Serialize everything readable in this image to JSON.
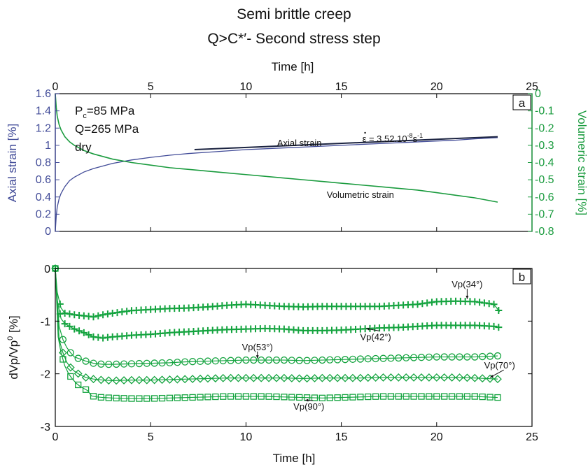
{
  "figure": {
    "title_line1": "Semi brittle creep",
    "title_line2": "Q>C*′- Second stress step"
  },
  "colors": {
    "axial": "#404a97",
    "volumetric": "#1a9b3e",
    "fit": "#1b2340",
    "markers": "#13a33e"
  },
  "chart_data": [
    {
      "type": "line",
      "panel_label": "a",
      "top_xlabel": "Time [h]",
      "xlim": [
        0,
        25
      ],
      "xticks": [
        0,
        5,
        10,
        15,
        20,
        25
      ],
      "y_left": {
        "label": "Axial strain [%]",
        "lim": [
          0,
          1.6
        ],
        "ticks": [
          0,
          0.2,
          0.4,
          0.6,
          0.8,
          1,
          1.2,
          1.4,
          1.6
        ]
      },
      "y_right": {
        "label": "Volumeric strain [%]",
        "lim": [
          -0.8,
          0
        ],
        "ticks": [
          -0.8,
          -0.7,
          -0.6,
          -0.5,
          -0.4,
          -0.3,
          -0.2,
          -0.1,
          0
        ]
      },
      "conditions": {
        "pc_main": "P",
        "pc_sub": "c",
        "pc_value": "=85 MPa",
        "q": "Q=265 MPa",
        "state": "dry"
      },
      "series": [
        {
          "name": "Axial strain",
          "axis": "left",
          "x": [
            0,
            0.05,
            0.1,
            0.2,
            0.3,
            0.5,
            0.75,
            1,
            1.5,
            2,
            3,
            4,
            5,
            6,
            7,
            8,
            9,
            10,
            11,
            12,
            13,
            14,
            15,
            16,
            17,
            18,
            19,
            20,
            21,
            22,
            23.2
          ],
          "y": [
            0.0,
            0.18,
            0.28,
            0.38,
            0.44,
            0.52,
            0.59,
            0.63,
            0.69,
            0.73,
            0.79,
            0.83,
            0.86,
            0.885,
            0.905,
            0.92,
            0.935,
            0.95,
            0.96,
            0.97,
            0.98,
            0.99,
            1.0,
            1.01,
            1.02,
            1.03,
            1.04,
            1.05,
            1.06,
            1.075,
            1.09
          ]
        },
        {
          "name": "Volumetric strain",
          "axis": "right",
          "x": [
            0,
            0.05,
            0.1,
            0.2,
            0.3,
            0.5,
            0.75,
            1,
            1.5,
            2,
            3,
            4,
            5,
            6,
            7,
            8,
            9,
            10,
            11,
            12,
            13,
            14,
            15,
            16,
            17,
            18,
            19,
            20,
            21,
            22,
            23.2
          ],
          "y": [
            0.0,
            -0.08,
            -0.13,
            -0.18,
            -0.21,
            -0.25,
            -0.28,
            -0.3,
            -0.33,
            -0.35,
            -0.38,
            -0.4,
            -0.415,
            -0.43,
            -0.44,
            -0.45,
            -0.46,
            -0.47,
            -0.48,
            -0.49,
            -0.5,
            -0.51,
            -0.52,
            -0.53,
            -0.54,
            -0.55,
            -0.56,
            -0.575,
            -0.59,
            -0.605,
            -0.63
          ]
        }
      ],
      "fit_line": {
        "x": [
          7.3,
          23.2
        ],
        "y": [
          0.95,
          1.1
        ]
      },
      "annotations": {
        "axial_label": {
          "text": "Axial strain",
          "x": 12.8,
          "y": 0.99
        },
        "volumetric_label": {
          "text": "Volumetric strain",
          "x": 16,
          "y": 0.39
        },
        "rate": {
          "symbol": "ε",
          "eq": " = 3.52.10",
          "exp1": "-8",
          "unit": "s",
          "exp2": "-1",
          "x": 16.1,
          "y": 1.04
        }
      }
    },
    {
      "type": "scatter",
      "panel_label": "b",
      "xlabel": "Time [h]",
      "ylabel_main": "dVp/Vp",
      "ylabel_sup": "0",
      "ylabel_unit": " [%]",
      "xlim": [
        0,
        25
      ],
      "ylim": [
        -3,
        0
      ],
      "xticks": [
        0,
        5,
        10,
        15,
        20,
        25
      ],
      "yticks": [
        0,
        -1,
        -2,
        -3
      ],
      "series": [
        {
          "name": "Vp(34°)",
          "marker": "plus",
          "step": 0.25,
          "x": [
            0,
            0.1,
            0.3,
            0.5,
            1,
            1.5,
            2,
            2.5,
            3,
            4,
            5,
            6,
            7,
            8,
            9,
            10,
            11,
            12,
            13,
            14,
            15,
            16,
            17,
            18,
            19,
            20,
            21,
            22,
            23,
            23.3
          ],
          "y": [
            0,
            -0.45,
            -0.75,
            -0.85,
            -0.88,
            -0.9,
            -0.92,
            -0.88,
            -0.85,
            -0.8,
            -0.78,
            -0.76,
            -0.75,
            -0.73,
            -0.7,
            -0.68,
            -0.7,
            -0.72,
            -0.73,
            -0.72,
            -0.72,
            -0.72,
            -0.72,
            -0.7,
            -0.68,
            -0.63,
            -0.62,
            -0.63,
            -0.68,
            -0.82
          ]
        },
        {
          "name": "Vp(42°)",
          "marker": "plus",
          "step": 0.25,
          "x": [
            0,
            0.1,
            0.3,
            0.5,
            1,
            1.5,
            2,
            2.5,
            3,
            4,
            5,
            6,
            7,
            8,
            9,
            10,
            11,
            12,
            13,
            14,
            15,
            16,
            17,
            18,
            19,
            20,
            21,
            22,
            23,
            23.3
          ],
          "y": [
            0,
            -0.6,
            -0.95,
            -1.05,
            -1.15,
            -1.22,
            -1.3,
            -1.32,
            -1.3,
            -1.27,
            -1.25,
            -1.22,
            -1.2,
            -1.18,
            -1.16,
            -1.15,
            -1.14,
            -1.15,
            -1.18,
            -1.18,
            -1.17,
            -1.15,
            -1.13,
            -1.12,
            -1.1,
            -1.08,
            -1.08,
            -1.08,
            -1.1,
            -1.12
          ]
        },
        {
          "name": "Vp(53°)",
          "marker": "circle",
          "step": 0.4,
          "x": [
            0,
            0.2,
            0.4,
            0.6,
            0.8,
            1,
            1.3,
            1.6,
            2,
            2.5,
            3,
            4,
            5,
            6,
            7,
            8,
            9,
            10,
            11,
            12,
            13,
            14,
            15,
            16,
            17,
            18,
            19,
            20,
            21,
            22,
            23.2
          ],
          "y": [
            0,
            -1.1,
            -1.35,
            -1.5,
            -1.6,
            -1.68,
            -1.72,
            -1.76,
            -1.8,
            -1.82,
            -1.82,
            -1.81,
            -1.8,
            -1.79,
            -1.77,
            -1.76,
            -1.75,
            -1.74,
            -1.74,
            -1.74,
            -1.75,
            -1.74,
            -1.73,
            -1.72,
            -1.71,
            -1.7,
            -1.69,
            -1.68,
            -1.68,
            -1.68,
            -1.66
          ]
        },
        {
          "name": "Vp(70°)",
          "marker": "diamond",
          "step": 0.4,
          "x": [
            0,
            0.2,
            0.4,
            0.6,
            0.8,
            1,
            1.3,
            1.6,
            2,
            2.5,
            3,
            4,
            5,
            6,
            7,
            8,
            9,
            10,
            11,
            12,
            13,
            14,
            15,
            16,
            17,
            18,
            19,
            20,
            21,
            22,
            23.2
          ],
          "y": [
            0,
            -1.35,
            -1.6,
            -1.78,
            -1.88,
            -1.95,
            -2.02,
            -2.07,
            -2.1,
            -2.12,
            -2.13,
            -2.12,
            -2.12,
            -2.11,
            -2.1,
            -2.09,
            -2.08,
            -2.08,
            -2.08,
            -2.08,
            -2.09,
            -2.08,
            -2.08,
            -2.08,
            -2.07,
            -2.07,
            -2.07,
            -2.07,
            -2.07,
            -2.08,
            -2.1
          ]
        },
        {
          "name": "Vp(90°)",
          "marker": "square",
          "step": 0.4,
          "x": [
            0,
            0.15,
            0.3,
            0.5,
            0.7,
            0.9,
            1.1,
            1.3,
            1.5,
            1.7,
            1.9,
            2.2,
            2.5,
            3,
            4,
            5,
            6,
            7,
            8,
            9,
            10,
            11,
            12,
            13,
            14,
            15,
            16,
            17,
            18,
            19,
            20,
            21,
            22,
            23.2
          ],
          "y": [
            0,
            -1.3,
            -1.6,
            -1.85,
            -2.0,
            -2.1,
            -2.18,
            -2.24,
            -2.28,
            -2.32,
            -2.42,
            -2.44,
            -2.45,
            -2.46,
            -2.47,
            -2.47,
            -2.46,
            -2.45,
            -2.44,
            -2.43,
            -2.43,
            -2.43,
            -2.44,
            -2.45,
            -2.46,
            -2.45,
            -2.44,
            -2.43,
            -2.43,
            -2.43,
            -2.43,
            -2.43,
            -2.43,
            -2.45
          ]
        }
      ],
      "labels": [
        {
          "series": "Vp(34°)",
          "x": 21.6,
          "y": -0.36,
          "ax": 21.6,
          "ay": -0.58
        },
        {
          "series": "Vp(42°)",
          "x": 16.8,
          "y": -1.36,
          "ax": 16.3,
          "ay": -1.14
        },
        {
          "series": "Vp(53°)",
          "x": 10.6,
          "y": -1.55,
          "ax": 10.6,
          "ay": -1.71
        },
        {
          "series": "Vp(70°)",
          "x": 23.3,
          "y": -1.9,
          "ax": 22.8,
          "ay": -2.07
        },
        {
          "series": "Vp(90°)",
          "x": 13.3,
          "y": -2.68,
          "ax": 13.1,
          "ay": -2.5
        }
      ]
    }
  ]
}
